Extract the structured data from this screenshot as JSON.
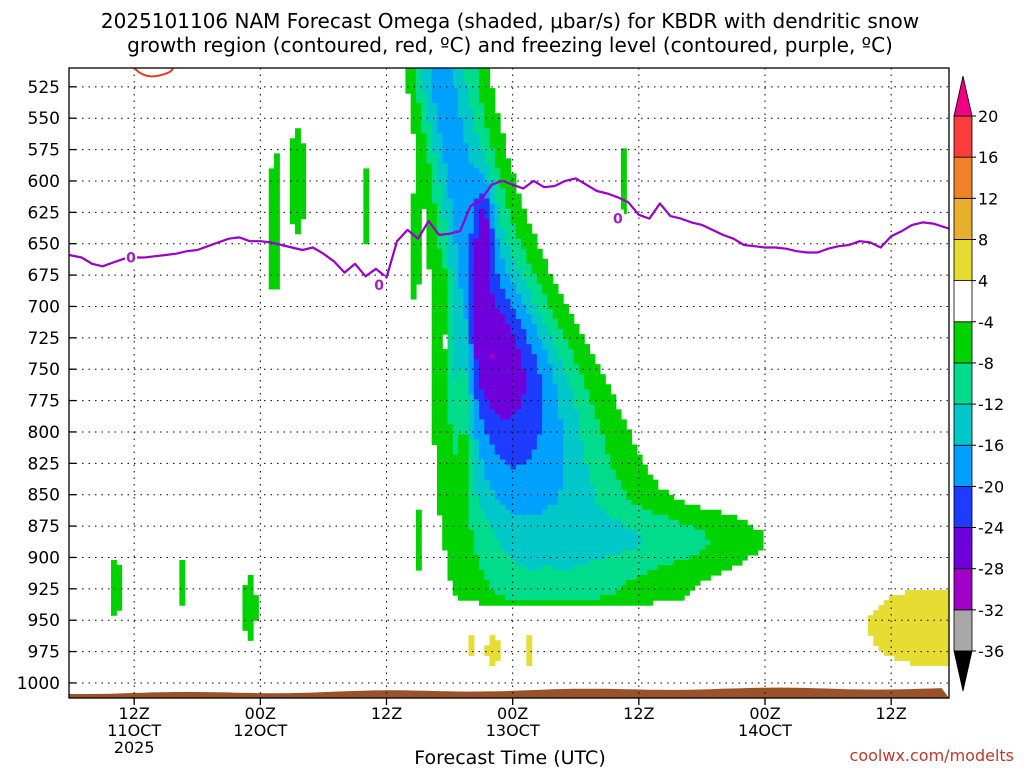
{
  "chart_data": {
    "type": "heatmap",
    "title_lines": [
      "2025101106 NAM Forecast Omega (shaded, μbar/s) for KBDR with dendritic snow",
      "growth region (contoured, red, ºC) and freezing level (contoured, purple, ºC)"
    ],
    "xlabel": "Forecast Time (UTC)",
    "credit": "coolwx.com/modelts",
    "y_axis": {
      "scale": "pressure (hPa), inverted",
      "ticks": [
        525,
        550,
        575,
        600,
        625,
        650,
        675,
        700,
        725,
        750,
        775,
        800,
        825,
        850,
        875,
        900,
        925,
        950,
        975,
        1000
      ],
      "range": [
        510,
        1012
      ]
    },
    "x_axis": {
      "unit": "forecast hour",
      "range": [
        -6.2,
        77.5
      ],
      "ticks": [
        {
          "hour": 0,
          "lines": [
            "12Z",
            "11OCT",
            "2025"
          ]
        },
        {
          "hour": 12,
          "lines": [
            "00Z",
            "12OCT"
          ]
        },
        {
          "hour": 24,
          "lines": [
            "12Z"
          ]
        },
        {
          "hour": 36,
          "lines": [
            "00Z",
            "13OCT"
          ]
        },
        {
          "hour": 48,
          "lines": [
            "12Z"
          ]
        },
        {
          "hour": 60,
          "lines": [
            "00Z",
            "14OCT"
          ]
        },
        {
          "hour": 72,
          "lines": [
            "12Z"
          ]
        }
      ]
    },
    "colorbar": {
      "ticks": [
        "20",
        "16",
        "12",
        "8",
        "4",
        "-4",
        "-8",
        "-12",
        "-16",
        "-20",
        "-24",
        "-28",
        "-32",
        "-36"
      ],
      "bins": [
        {
          "from": -40,
          "to": -36,
          "color": "#000000"
        },
        {
          "from": -36,
          "to": -32,
          "color": "#a8a8a8"
        },
        {
          "from": -32,
          "to": -28,
          "color": "#a000c8"
        },
        {
          "from": -28,
          "to": -24,
          "color": "#6e00dc"
        },
        {
          "from": -24,
          "to": -20,
          "color": "#1e3cff"
        },
        {
          "from": -20,
          "to": -16,
          "color": "#00a0ff"
        },
        {
          "from": -16,
          "to": -12,
          "color": "#00c8c8"
        },
        {
          "from": -12,
          "to": -8,
          "color": "#00dc8c"
        },
        {
          "from": -8,
          "to": -4,
          "color": "#00d200"
        },
        {
          "from": -4,
          "to": 4,
          "color": "#ffffff"
        },
        {
          "from": 4,
          "to": 8,
          "color": "#e6dc32"
        },
        {
          "from": 8,
          "to": 12,
          "color": "#e6af2d"
        },
        {
          "from": 12,
          "to": 16,
          "color": "#f08228"
        },
        {
          "from": 16,
          "to": 20,
          "color": "#fa3c3c"
        },
        {
          "from": 20,
          "to": 24,
          "color": "#f00082"
        }
      ]
    },
    "freezing_level": {
      "label": "0",
      "color": "#9b00c8",
      "x": [
        -6.2,
        -5,
        -4,
        -3,
        -2,
        -1,
        0,
        1,
        2,
        3,
        4,
        5,
        6,
        7,
        8,
        9,
        10,
        11,
        12,
        13,
        14,
        15,
        16,
        17,
        18,
        19,
        20,
        21,
        22,
        23,
        24,
        25,
        26,
        27,
        28,
        29,
        30,
        31,
        32,
        33,
        34,
        35,
        36,
        37,
        38,
        39,
        40,
        41,
        42,
        43,
        44,
        45,
        46,
        47,
        48,
        49,
        50,
        51,
        52,
        53,
        54,
        55,
        56,
        57,
        58,
        59,
        60,
        61,
        62,
        63,
        64,
        65,
        66,
        67,
        68,
        69,
        70,
        71,
        72,
        73,
        74,
        75,
        76,
        77.5
      ],
      "p": [
        659,
        661,
        666,
        668,
        665,
        662,
        661,
        661,
        660,
        659,
        658,
        656,
        655,
        652,
        649,
        646,
        645,
        648,
        648,
        649,
        651,
        653,
        655,
        653,
        658,
        664,
        673,
        666,
        676,
        670,
        677,
        648,
        639,
        646,
        632,
        643,
        642,
        640,
        620,
        615,
        603,
        600,
        603,
        606,
        600,
        605,
        604,
        600,
        598,
        603,
        608,
        610,
        613,
        617,
        627,
        630,
        618,
        628,
        630,
        633,
        635,
        639,
        643,
        646,
        651,
        652,
        653,
        653,
        654,
        656,
        657,
        657,
        654,
        652,
        651,
        648,
        649,
        653,
        644,
        640,
        635,
        633,
        634,
        638
      ]
    },
    "dendritic_growth_region_color": "#e04020",
    "terrain_color": "#9a522a"
  }
}
